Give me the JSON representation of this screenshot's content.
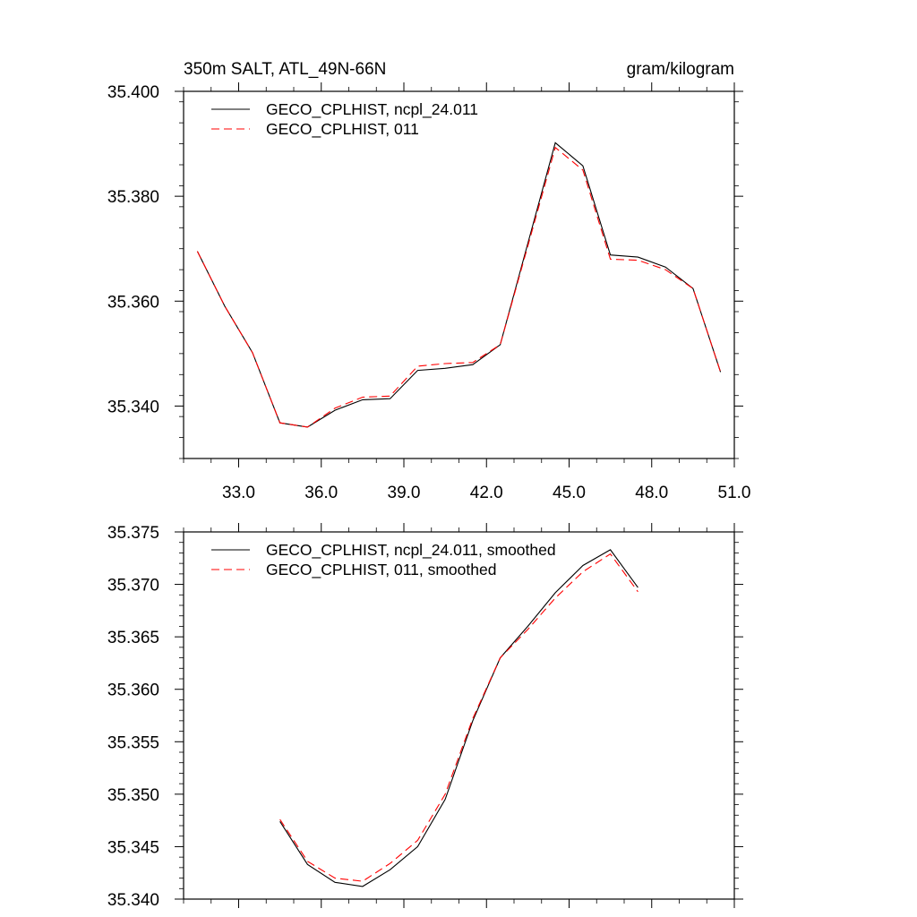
{
  "header": {
    "left_title": "350m SALT, ATL_49N-66N",
    "right_title": "gram/kilogram"
  },
  "chart_data": [
    {
      "type": "line",
      "xlim": [
        31.0,
        51.0
      ],
      "ylim": [
        35.33,
        35.4
      ],
      "x_ticks": [
        33.0,
        36.0,
        39.0,
        42.0,
        45.0,
        48.0,
        51.0
      ],
      "x_tick_labels": [
        "33.0",
        "36.0",
        "39.0",
        "42.0",
        "45.0",
        "48.0",
        "51.0"
      ],
      "y_ticks": [
        35.34,
        35.36,
        35.38,
        35.4
      ],
      "y_tick_labels": [
        "35.340",
        "35.360",
        "35.380",
        "35.400"
      ],
      "legend_position": "top-left",
      "x": [
        31.5,
        32.5,
        33.5,
        34.5,
        35.5,
        36.5,
        37.5,
        38.5,
        39.5,
        40.5,
        41.5,
        42.5,
        43.5,
        44.5,
        45.5,
        46.5,
        47.5,
        48.5,
        49.5,
        50.5
      ],
      "series": [
        {
          "name": "GECO_CPLHIST, ncpl_24.011",
          "color": "#000000",
          "dash": "solid",
          "values": [
            35.3695,
            35.359,
            35.3502,
            35.3368,
            35.336,
            35.3392,
            35.3412,
            35.3414,
            35.3468,
            35.3472,
            35.3479,
            35.3517,
            35.371,
            35.3902,
            35.3858,
            35.3688,
            35.3684,
            35.3665,
            35.3624,
            35.3465
          ]
        },
        {
          "name": "GECO_CPLHIST, 011",
          "color": "#ff0000",
          "dash": "dashed",
          "values": [
            35.3695,
            35.359,
            35.3502,
            35.3368,
            35.336,
            35.3396,
            35.3417,
            35.3419,
            35.3476,
            35.3481,
            35.3483,
            35.3517,
            35.3705,
            35.3893,
            35.385,
            35.368,
            35.3678,
            35.366,
            35.3624,
            35.3465
          ]
        }
      ]
    },
    {
      "type": "line",
      "xlim": [
        31.0,
        51.0
      ],
      "ylim": [
        35.34,
        35.375
      ],
      "x_ticks": [
        33.0,
        36.0,
        39.0,
        42.0,
        45.0,
        48.0,
        51.0
      ],
      "y_ticks": [
        35.34,
        35.345,
        35.35,
        35.355,
        35.36,
        35.365,
        35.37,
        35.375
      ],
      "y_tick_labels": [
        "35.340",
        "35.345",
        "35.350",
        "35.355",
        "35.360",
        "35.365",
        "35.370",
        "35.375"
      ],
      "legend_position": "top-left",
      "x": [
        34.5,
        35.5,
        36.5,
        37.5,
        38.5,
        39.5,
        40.5,
        41.5,
        42.5,
        43.5,
        44.5,
        45.5,
        46.5,
        47.5
      ],
      "series": [
        {
          "name": "GECO_CPLHIST, ncpl_24.011, smoothed",
          "color": "#000000",
          "dash": "solid",
          "values": [
            35.3474,
            35.3433,
            35.3416,
            35.3412,
            35.3428,
            35.345,
            35.3495,
            35.357,
            35.363,
            35.366,
            35.3692,
            35.3718,
            35.3733,
            35.3697
          ]
        },
        {
          "name": "GECO_CPLHIST, 011, smoothed",
          "color": "#ff0000",
          "dash": "dashed",
          "values": [
            35.3476,
            35.3436,
            35.342,
            35.3417,
            35.3434,
            35.3456,
            35.35,
            35.3572,
            35.363,
            35.3657,
            35.3687,
            35.3712,
            35.3729,
            35.3693
          ]
        }
      ]
    }
  ]
}
